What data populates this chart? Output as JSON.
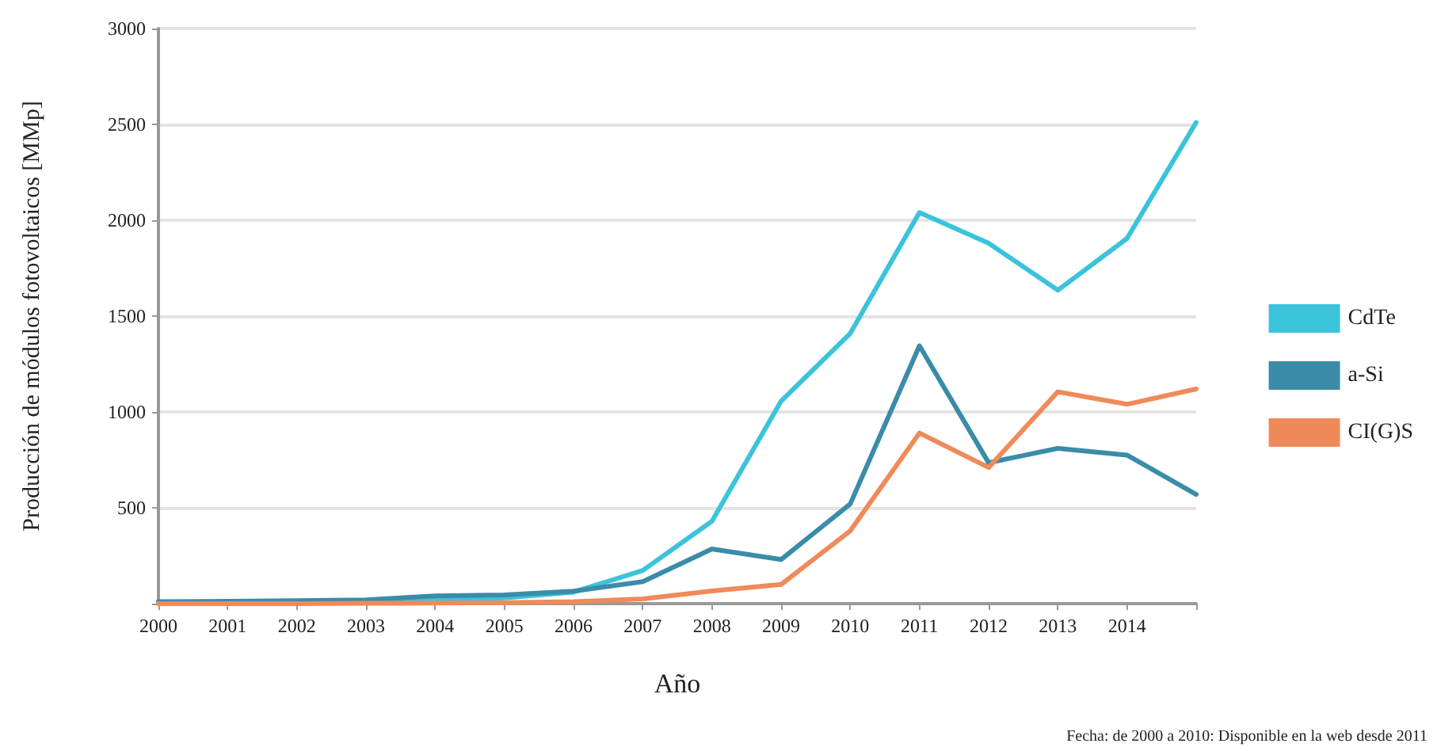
{
  "chart_data": {
    "type": "line",
    "xlabel": "Año",
    "ylabel": "Producción de módulos fotovoltaicos [MMp]",
    "annotations": [
      "Fecha: de 2000 a 2010: Disponible en la web desde 2011"
    ],
    "x": [
      2000,
      2001,
      2002,
      2003,
      2004,
      2005,
      2006,
      2007,
      2008,
      2009,
      2010,
      2011,
      2012,
      2013,
      2014,
      2015
    ],
    "series": [
      {
        "name": "CdTe",
        "color": "#3cc3dc",
        "values": [
          5,
          5,
          8,
          10,
          20,
          30,
          60,
          173,
          430,
          1056,
          1410,
          2040,
          1880,
          1635,
          1905,
          2510
        ]
      },
      {
        "name": "a-Si",
        "color": "#3a8ca8",
        "values": [
          10,
          12,
          15,
          20,
          40,
          45,
          65,
          115,
          285,
          230,
          520,
          1345,
          735,
          810,
          775,
          570
        ]
      },
      {
        "name": "CI(G)S",
        "color": "#f08a5a",
        "values": [
          0,
          0,
          0,
          2,
          3,
          5,
          10,
          25,
          66,
          100,
          380,
          890,
          710,
          1105,
          1040,
          1120
        ]
      }
    ],
    "xlim": [
      2000,
      2015
    ],
    "xticks": [
      2000,
      2001,
      2002,
      2003,
      2004,
      2005,
      2006,
      2007,
      2008,
      2009,
      2010,
      2011,
      2012,
      2013,
      2014,
      {
        "value": 2015,
        "label": null
      }
    ],
    "ylim": [
      0,
      3000
    ],
    "yticks": [
      {
        "value": 0,
        "label": null
      },
      500,
      1000,
      1500,
      2000,
      2500,
      3000
    ],
    "grid": "y",
    "legend": "right",
    "marker": "none",
    "line_style": "solid"
  }
}
